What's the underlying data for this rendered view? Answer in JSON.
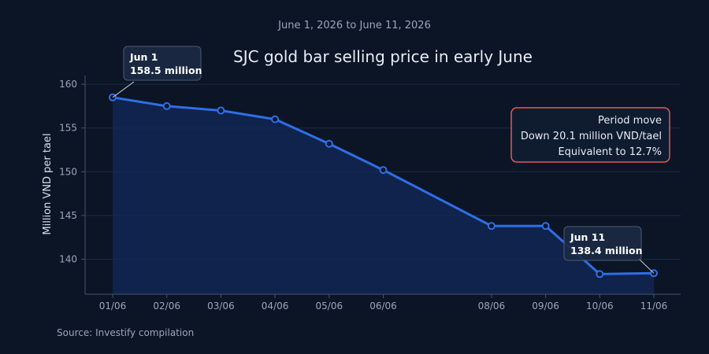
{
  "chart_data": {
    "type": "line",
    "subtitle": "June 1, 2026 to June 11, 2026",
    "title": "SJC gold bar selling price in early June",
    "ylabel": "Million VND per tael",
    "xlabel": "",
    "source": "Source: Investify compilation",
    "ylim": [
      136,
      161
    ],
    "yticks": [
      140,
      145,
      150,
      155,
      160
    ],
    "x": [
      1,
      2,
      3,
      4,
      5,
      6,
      8,
      9,
      10,
      11
    ],
    "x_labels": [
      "01/06",
      "02/06",
      "03/06",
      "04/06",
      "05/06",
      "06/06",
      "08/06",
      "09/06",
      "10/06",
      "11/06"
    ],
    "values": [
      158.5,
      157.5,
      157.0,
      156.0,
      153.2,
      150.2,
      143.8,
      143.8,
      138.3,
      138.4
    ],
    "grid": true,
    "line_color": "#2f6ee6",
    "area_color": "#13285a",
    "annotations": [
      {
        "x": 1,
        "line1": "Jun 1",
        "line2": "158.5 million"
      },
      {
        "x": 11,
        "line1": "Jun 11",
        "line2": "138.4 million"
      }
    ],
    "info_box": {
      "lines": [
        "Period move",
        "Down 20.1 million VND/tael",
        "Equivalent to 12.7%"
      ],
      "border_color": "#e05a5a"
    }
  }
}
